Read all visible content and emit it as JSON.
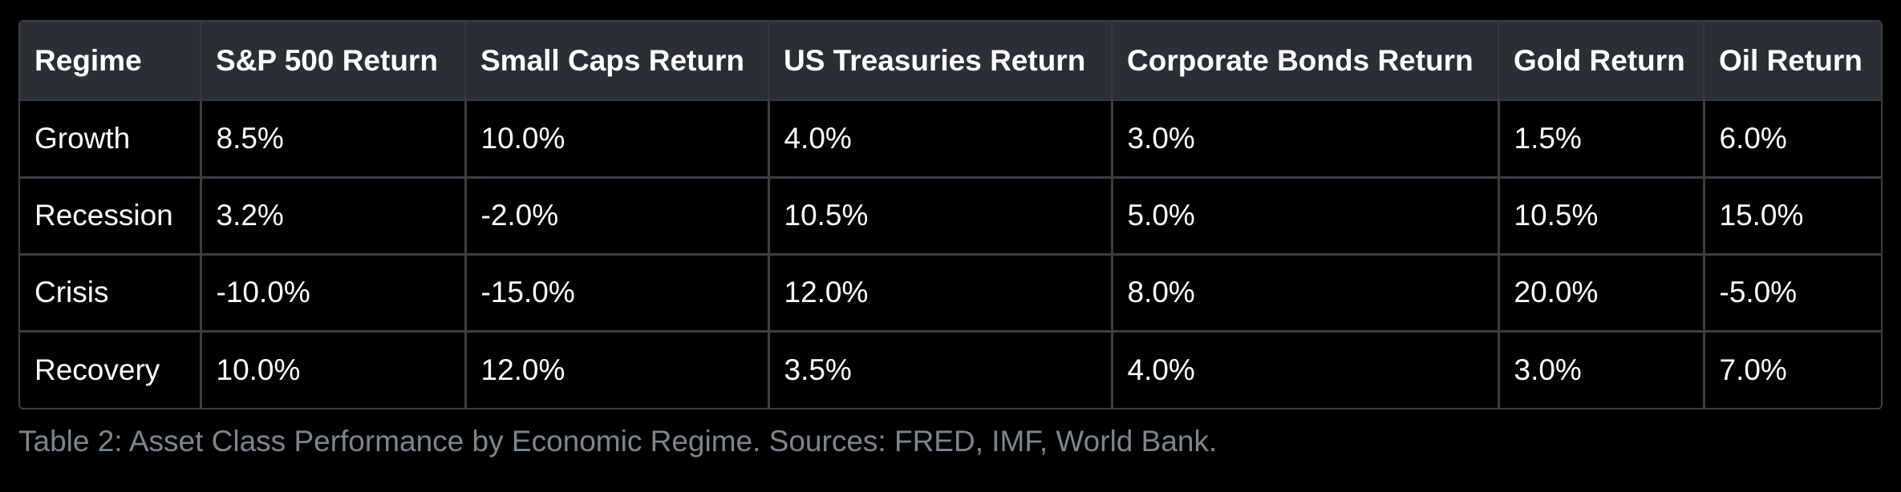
{
  "table": {
    "columns": [
      "Regime",
      "S&P 500 Return",
      "Small Caps Return",
      "US Treasuries Return",
      "Corporate Bonds Return",
      "Gold Return",
      "Oil Return"
    ],
    "rows": [
      [
        "Growth",
        "8.5%",
        "10.0%",
        "4.0%",
        "3.0%",
        "1.5%",
        "6.0%"
      ],
      [
        "Recession",
        "3.2%",
        "-2.0%",
        "10.5%",
        "5.0%",
        "10.5%",
        "15.0%"
      ],
      [
        "Crisis",
        "-10.0%",
        "-15.0%",
        "12.0%",
        "8.0%",
        "20.0%",
        "-5.0%"
      ],
      [
        "Recovery",
        "10.0%",
        "12.0%",
        "3.5%",
        "4.0%",
        "3.0%",
        "7.0%"
      ]
    ]
  },
  "caption": "Table 2: Asset Class Performance by Economic Regime. Sources: FRED, IMF, World Bank.",
  "colors": {
    "background": "#000000",
    "header_background": "#2a2f36",
    "border": "#3a3f45",
    "text": "#ffffff",
    "caption_text": "#7d858d"
  }
}
